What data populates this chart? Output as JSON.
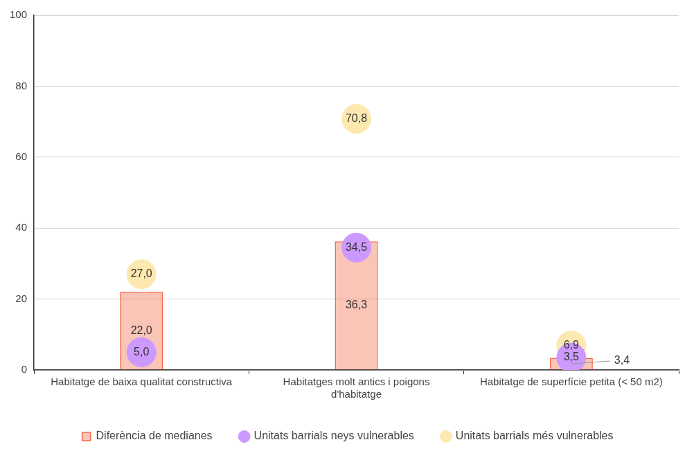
{
  "chart_data": {
    "type": "bar",
    "categories": [
      "Habitatge de baixa qualitat constructiva",
      "Habitatges molt antics i poigons d'habitatge",
      "Habitatge de superfície petita (< 50 m2)"
    ],
    "series": [
      {
        "name": "Diferència de medianes",
        "color": "#f26b4a",
        "values": [
          22.0,
          36.3,
          3.4
        ],
        "value_labels": [
          "22,0",
          "36,3",
          "3,4"
        ]
      },
      {
        "name": "Unitats barrials neys vulnerables",
        "type": "scatter",
        "color": "#cc99ff",
        "values": [
          5.0,
          34.5,
          3.5
        ],
        "value_labels": [
          "5,0",
          "34,5",
          "3,5"
        ]
      },
      {
        "name": "Unitats barrials més vulnerables",
        "type": "scatter",
        "color": "#fde9b0",
        "values": [
          27.0,
          70.8,
          6.9
        ],
        "value_labels": [
          "27,0",
          "70,8",
          "6,9"
        ]
      }
    ],
    "ylim": [
      0,
      100
    ],
    "yticks": [
      0,
      20,
      40,
      60,
      80,
      100
    ],
    "grid": "y",
    "legend": "bottom",
    "marker": "circle"
  }
}
